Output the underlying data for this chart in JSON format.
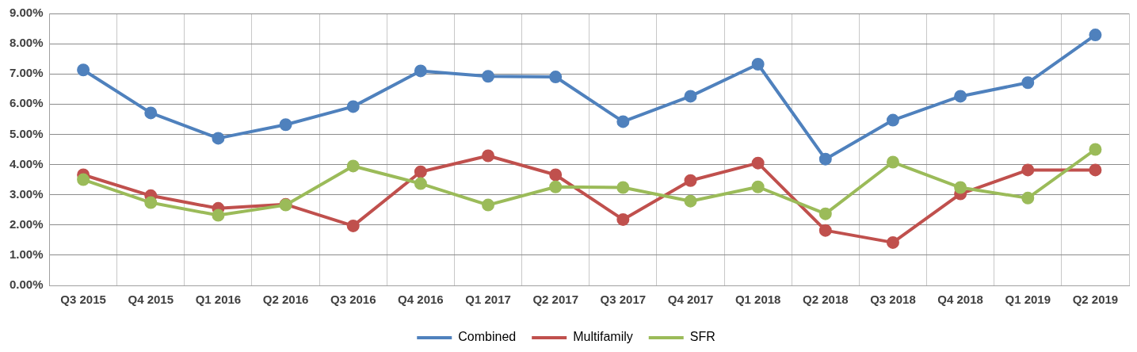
{
  "chart_data": {
    "type": "line",
    "categories": [
      "Q3 2015",
      "Q4 2015",
      "Q1 2016",
      "Q2 2016",
      "Q3 2016",
      "Q4 2016",
      "Q1 2017",
      "Q2 2017",
      "Q3 2017",
      "Q4 2017",
      "Q1 2018",
      "Q2 2018",
      "Q3 2018",
      "Q4 2018",
      "Q1 2019",
      "Q2 2019"
    ],
    "series": [
      {
        "name": "Combined",
        "color": "#4f81bd",
        "values": [
          7.13,
          5.71,
          4.87,
          5.32,
          5.92,
          7.1,
          6.92,
          6.9,
          5.42,
          6.26,
          7.32,
          4.18,
          5.47,
          6.26,
          6.71,
          8.29
        ]
      },
      {
        "name": "Multifamily",
        "color": "#c0504d",
        "values": [
          3.66,
          2.97,
          2.55,
          2.68,
          1.97,
          3.76,
          4.29,
          3.66,
          2.18,
          3.47,
          4.05,
          1.82,
          1.42,
          3.03,
          3.82,
          3.82
        ]
      },
      {
        "name": "SFR",
        "color": "#9bbb59",
        "values": [
          3.5,
          2.74,
          2.32,
          2.66,
          3.95,
          3.37,
          2.66,
          3.26,
          3.24,
          2.79,
          3.26,
          2.37,
          4.08,
          3.24,
          2.89,
          4.5
        ]
      }
    ],
    "ylim": [
      0,
      9
    ],
    "yticks": [
      {
        "value": 0,
        "label": "0.00%"
      },
      {
        "value": 1,
        "label": "1.00%"
      },
      {
        "value": 2,
        "label": "2.00%"
      },
      {
        "value": 3,
        "label": "3.00%"
      },
      {
        "value": 4,
        "label": "4.00%"
      },
      {
        "value": 5,
        "label": "5.00%"
      },
      {
        "value": 6,
        "label": "6.00%"
      },
      {
        "value": 7,
        "label": "7.00%"
      },
      {
        "value": 8,
        "label": "8.00%"
      },
      {
        "value": 9,
        "label": "9.00%"
      }
    ],
    "grid": true,
    "legend": "bottom",
    "marker": "circle",
    "line_style": "solid"
  }
}
